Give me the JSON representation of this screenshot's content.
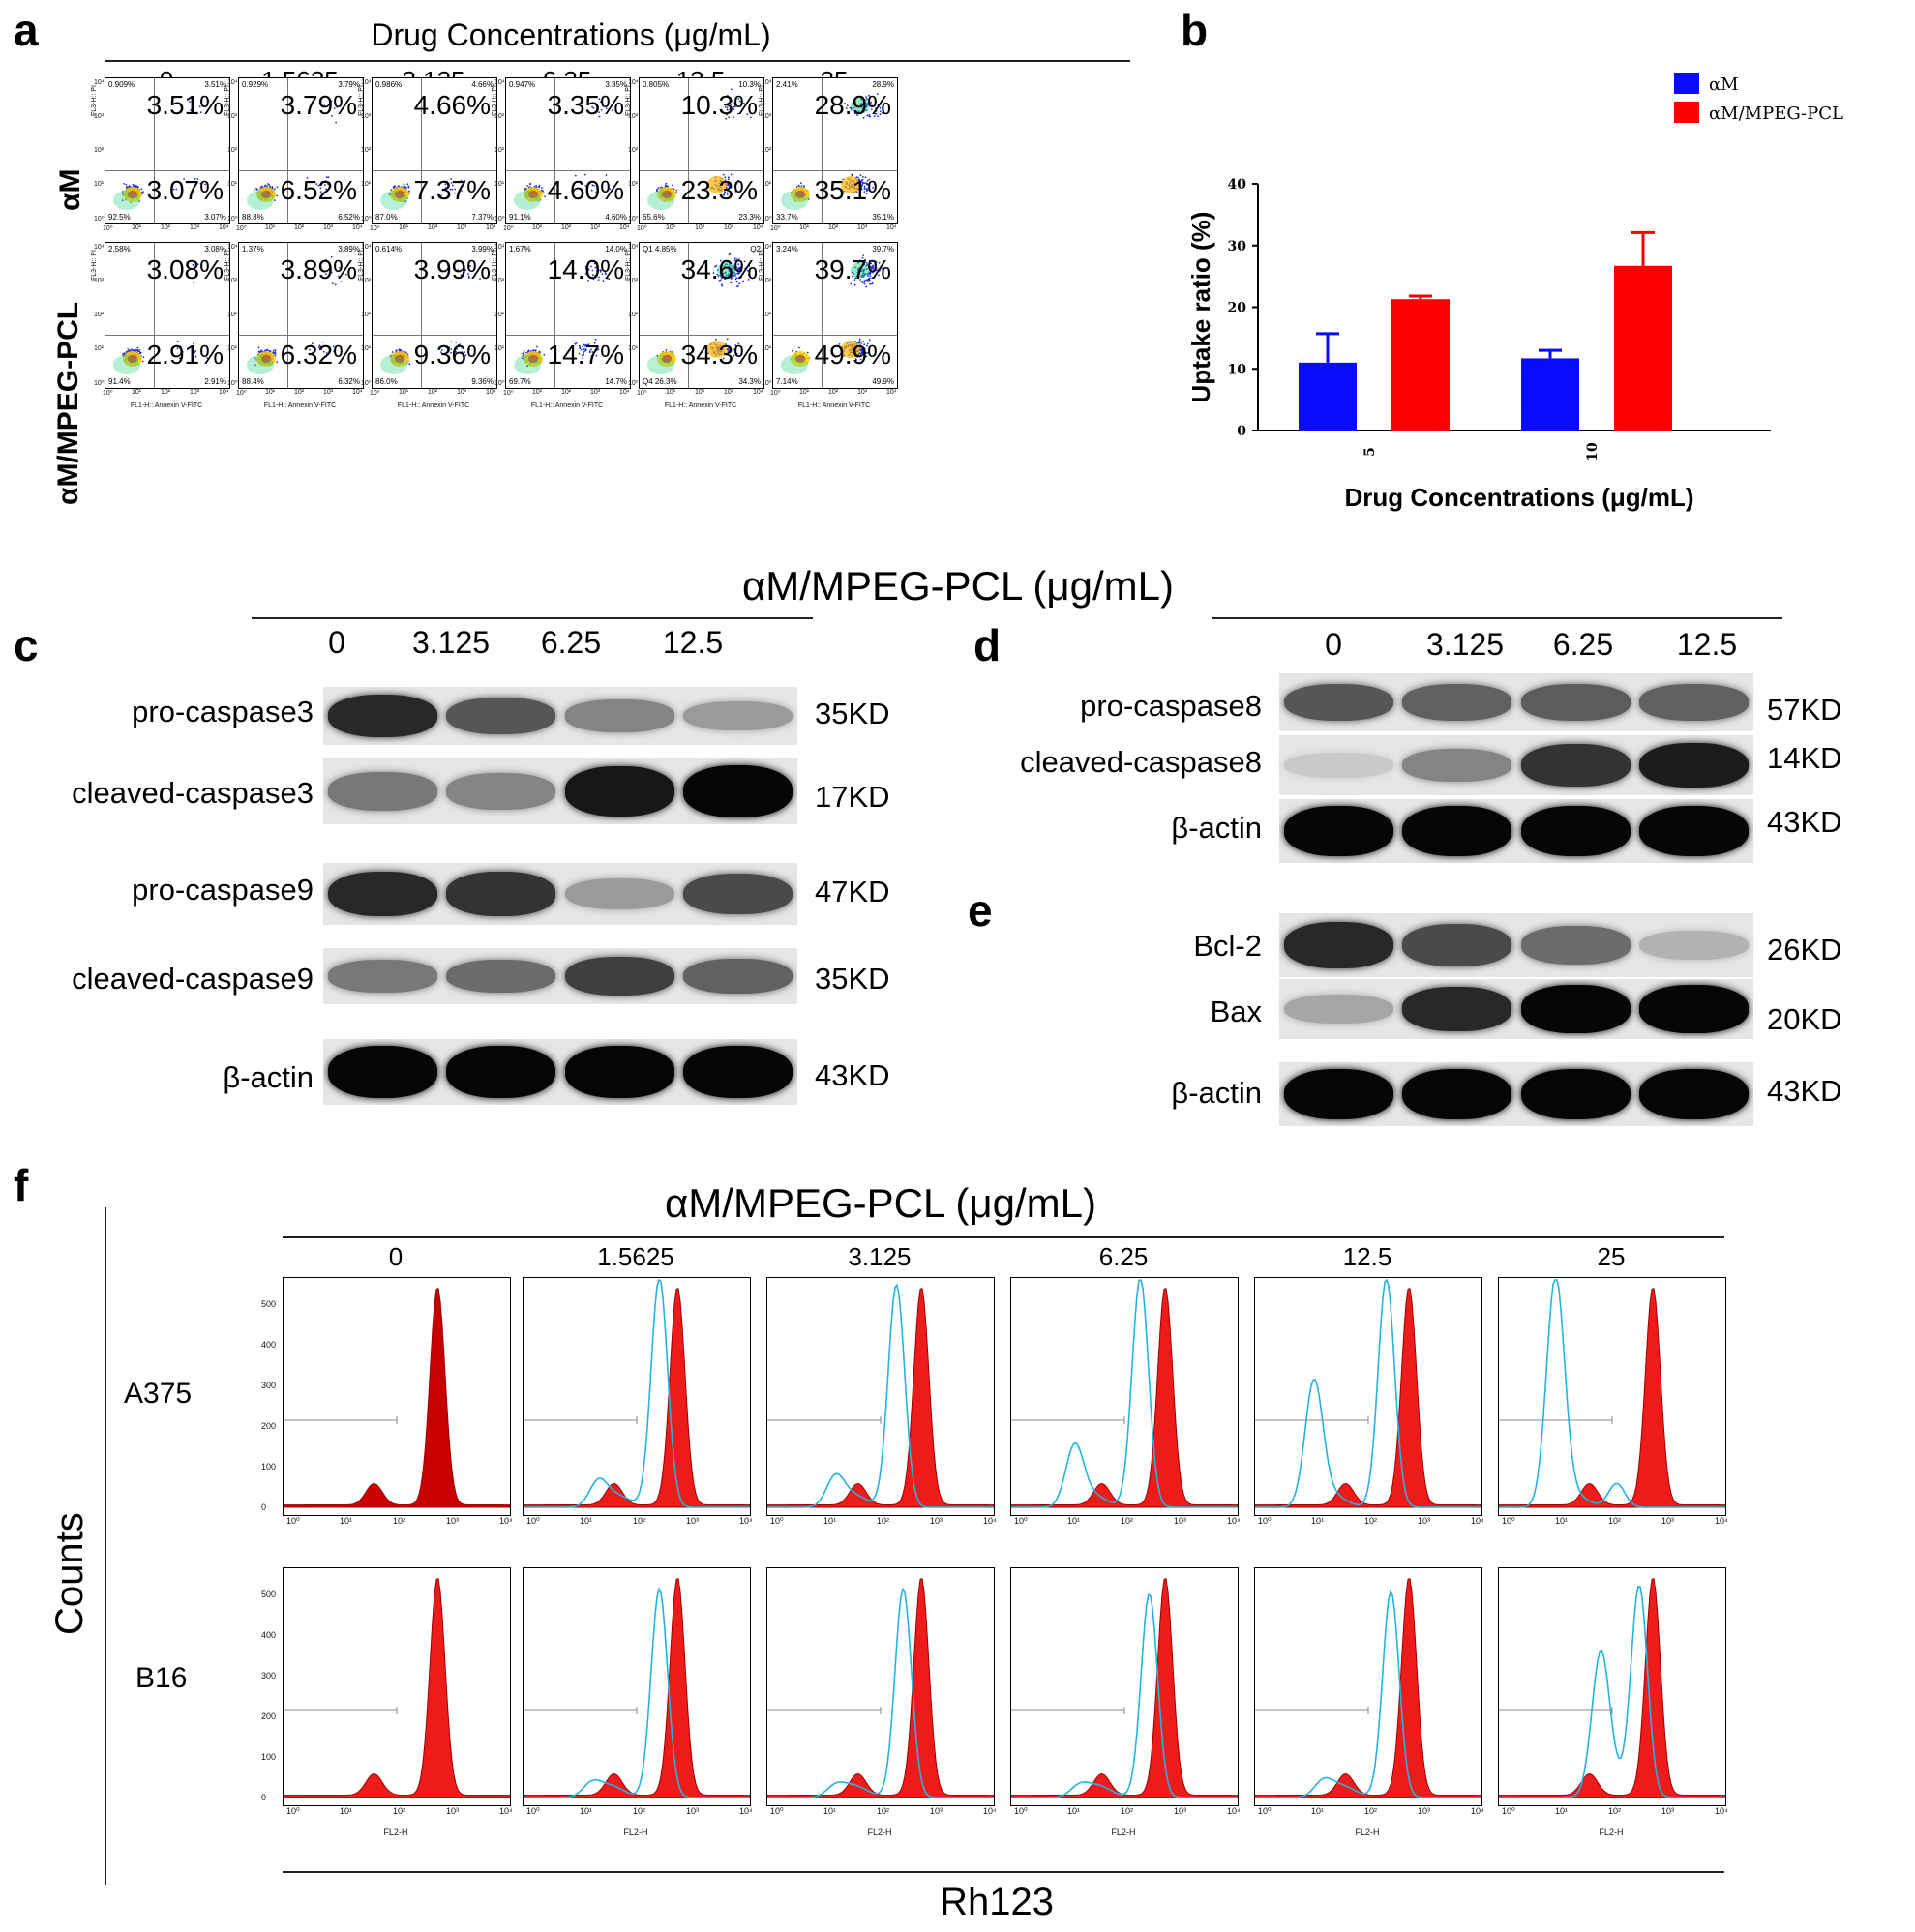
{
  "panel_a": {
    "letter": "a",
    "title": "Drug Concentrations (μg/mL)",
    "concentrations": [
      "0",
      "1.5625",
      "3.125",
      "6.25",
      "12.5",
      "25"
    ],
    "row_labels": [
      "αM",
      "αM/MPEG-PCL"
    ],
    "y_axis_label": "FL3-H:: PI",
    "x_axis_label": "FL1-H:: Annexin V-FITC",
    "tick_labels": [
      "10⁰",
      "10¹",
      "10²",
      "10³",
      "10⁴"
    ],
    "rows": [
      {
        "name": "αM",
        "plots": [
          {
            "upper_right": "3.51%",
            "lower_right": "3.07%",
            "ul_small": "0.909%",
            "ur_small": "3.51%",
            "ll_small": "92.5%",
            "lr_small": "3.07%"
          },
          {
            "upper_right": "3.79%",
            "lower_right": "6.52%",
            "ul_small": "0.929%",
            "ur_small": "3.79%",
            "ll_small": "88.8%",
            "lr_small": "6.52%"
          },
          {
            "upper_right": "4.66%",
            "lower_right": "7.37%",
            "ul_small": "0.986%",
            "ur_small": "4.66%",
            "ll_small": "87.0%",
            "lr_small": "7.37%"
          },
          {
            "upper_right": "3.35%",
            "lower_right": "4.60%",
            "ul_small": "0.947%",
            "ur_small": "3.35%",
            "ll_small": "91.1%",
            "lr_small": "4.60%"
          },
          {
            "upper_right": "10.3%",
            "lower_right": "23.3%",
            "ul_small": "0.805%",
            "ur_small": "10.3%",
            "ll_small": "65.6%",
            "lr_small": "23.3%"
          },
          {
            "upper_right": "28.9%",
            "lower_right": "35.1%",
            "ul_small": "2.41%",
            "ur_small": "28.9%",
            "ll_small": "33.7%",
            "lr_small": "35.1%"
          }
        ]
      },
      {
        "name": "αM/MPEG-PCL",
        "plots": [
          {
            "upper_right": "3.08%",
            "lower_right": "2.91%",
            "ul_small": "2.58%",
            "ur_small": "3.08%",
            "ll_small": "91.4%",
            "lr_small": "2.91%"
          },
          {
            "upper_right": "3.89%",
            "lower_right": "6.32%",
            "ul_small": "1.37%",
            "ur_small": "3.89%",
            "ll_small": "88.4%",
            "lr_small": "6.32%"
          },
          {
            "upper_right": "3.99%",
            "lower_right": "9.36%",
            "ul_small": "0.614%",
            "ur_small": "3.99%",
            "ll_small": "86.0%",
            "lr_small": "9.36%"
          },
          {
            "upper_right": "14.0%",
            "lower_right": "14.7%",
            "ul_small": "1.67%",
            "ur_small": "14.0%",
            "ll_small": "69.7%",
            "lr_small": "14.7%"
          },
          {
            "upper_right": "34.6%",
            "lower_right": "34.3%",
            "ul_small": "Q1 4.85%",
            "ur_small": "Q2",
            "ll_small": "Q4 26.3%",
            "lr_small": "34.3%"
          },
          {
            "upper_right": "39.7%",
            "lower_right": "49.9%",
            "ul_small": "3.24%",
            "ur_small": "39.7%",
            "ll_small": "7.14%",
            "lr_small": "49.9%"
          }
        ]
      }
    ]
  },
  "panel_b": {
    "letter": "b",
    "chart_data": {
      "type": "bar",
      "title": "",
      "categories": [
        "5",
        "10"
      ],
      "series": [
        {
          "name": "αM",
          "color": "#0a0aff",
          "values": [
            11,
            11.7
          ],
          "errors": [
            4.7,
            1.3
          ]
        },
        {
          "name": "αM/MPEG-PCL",
          "color": "#ff0000",
          "values": [
            21.3,
            26.7
          ],
          "errors": [
            0.5,
            5.4
          ]
        }
      ],
      "xlabel": "Drug Concentrations (μg/mL)",
      "ylabel": "Uptake ratio (%)",
      "ylim": [
        0,
        40
      ],
      "yticks": [
        "0",
        "10",
        "20",
        "30",
        "40"
      ],
      "legend_position": "top-right"
    }
  },
  "western_header": "αM/MPEG-PCL (μg/mL)",
  "panel_c": {
    "letter": "c",
    "lanes": [
      "0",
      "3.125",
      "6.25",
      "12.5"
    ],
    "blots": [
      {
        "label": "pro-caspase3",
        "size": "35KD"
      },
      {
        "label": "cleaved-caspase3",
        "size": "17KD"
      },
      {
        "label": "pro-caspase9",
        "size": "47KD"
      },
      {
        "label": "cleaved-caspase9",
        "size": "35KD"
      },
      {
        "label": "β-actin",
        "size": "43KD"
      }
    ]
  },
  "panel_d": {
    "letter": "d",
    "lanes": [
      "0",
      "3.125",
      "6.25",
      "12.5"
    ],
    "blots": [
      {
        "label": "pro-caspase8",
        "size": "57KD"
      },
      {
        "label": "cleaved-caspase8",
        "size": "14KD"
      },
      {
        "label": "β-actin",
        "size": "43KD"
      }
    ]
  },
  "panel_e": {
    "letter": "e",
    "blots": [
      {
        "label": "Bcl-2",
        "size": "26KD"
      },
      {
        "label": "Bax",
        "size": "20KD"
      },
      {
        "label": "β-actin",
        "size": "43KD"
      }
    ]
  },
  "panel_f": {
    "letter": "f",
    "title": "αM/MPEG-PCL (μg/mL)",
    "concentrations": [
      "0",
      "1.5625",
      "3.125",
      "6.25",
      "12.5",
      "25"
    ],
    "row_labels": [
      "A375",
      "B16"
    ],
    "y_axis_label": "Counts",
    "x_axis_label": "Rh123",
    "x_tick_label": "FL2-H",
    "y_ticks": [
      "0",
      "100",
      "200",
      "300",
      "400",
      "500"
    ],
    "x_ticks": [
      "10⁰",
      "10¹",
      "10²",
      "10³",
      "10⁴"
    ]
  }
}
